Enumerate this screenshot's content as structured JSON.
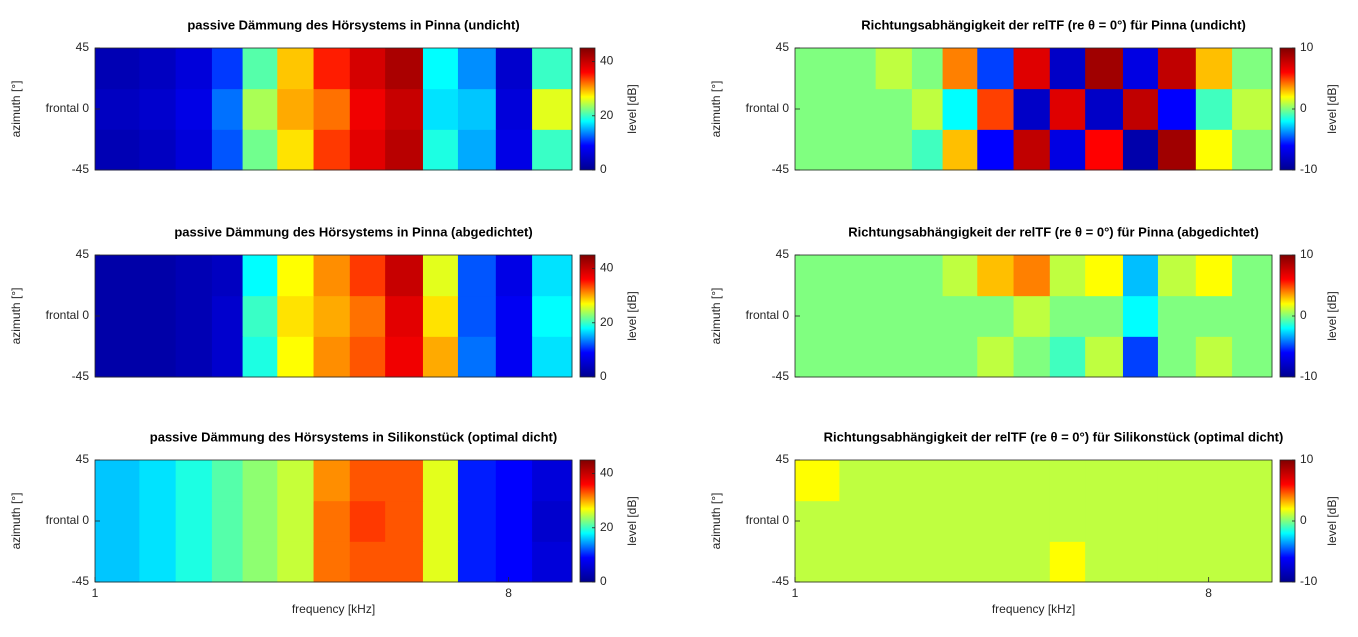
{
  "colormap": [
    "#00008f",
    "#0000ff",
    "#00ffff",
    "#ffff00",
    "#ff0000",
    "#800000"
  ],
  "chart_data": [
    {
      "type": "heatmap",
      "title": "passive Dämmung des Hörsystems in Pinna (undicht)",
      "ylabel": "azimuth [°]",
      "colorbar_label": "level [dB]",
      "log_x": true,
      "xlim": [
        1,
        11
      ],
      "ylim": [
        -45,
        45
      ],
      "yticks": [
        -45,
        {
          "value": 0,
          "label": "frontal 0"
        },
        45
      ],
      "clim": [
        0,
        45
      ],
      "cticks": [
        0,
        20,
        40
      ],
      "x_bins": [
        1,
        1.25,
        1.5,
        1.8,
        2.1,
        2.5,
        3,
        3.6,
        4.3,
        5.2,
        6.2,
        7.5,
        9,
        11
      ],
      "y_bins": [
        -45,
        -15,
        15,
        45
      ],
      "z": [
        [
          3,
          4,
          6,
          12,
          22,
          28,
          34,
          38,
          41,
          19,
          15,
          7,
          20
        ],
        [
          4,
          5,
          7,
          13,
          24,
          30,
          32,
          37,
          40,
          17,
          16,
          6,
          26
        ],
        [
          3,
          4,
          6,
          11,
          21,
          29,
          35,
          39,
          42,
          18,
          14,
          5,
          20
        ]
      ]
    },
    {
      "type": "heatmap",
      "title": "Richtungsabhängigkeit der relTF (re θ = 0°) für Pinna (undicht)",
      "ylabel": "azimuth [°]",
      "colorbar_label": "level [dB]",
      "log_x": true,
      "xlim": [
        1,
        11
      ],
      "ylim": [
        -45,
        45
      ],
      "yticks": [
        -45,
        {
          "value": 0,
          "label": "frontal 0"
        },
        45
      ],
      "clim": [
        -10,
        10
      ],
      "cticks": [
        -10,
        0,
        10
      ],
      "x_bins": [
        1,
        1.25,
        1.5,
        1.8,
        2.1,
        2.5,
        3,
        3.6,
        4.3,
        5.2,
        6.2,
        7.5,
        9,
        11
      ],
      "y_bins": [
        -45,
        -15,
        15,
        45
      ],
      "z": [
        [
          0,
          0,
          0,
          -1,
          3,
          -6,
          8,
          -7,
          6,
          -9,
          9,
          2,
          0
        ],
        [
          0,
          0,
          0,
          1,
          -2,
          5,
          -8,
          7,
          -8,
          8,
          -6,
          -1,
          1
        ],
        [
          0,
          0,
          1,
          0,
          4,
          -5,
          7,
          -8,
          9,
          -7,
          8,
          3,
          0
        ]
      ]
    },
    {
      "type": "heatmap",
      "title": "passive Dämmung des Hörsystems in Pinna (abgedichtet)",
      "ylabel": "azimuth [°]",
      "colorbar_label": "level [dB]",
      "log_x": true,
      "xlim": [
        1,
        11
      ],
      "ylim": [
        -45,
        45
      ],
      "yticks": [
        -45,
        {
          "value": 0,
          "label": "frontal 0"
        },
        45
      ],
      "clim": [
        0,
        45
      ],
      "cticks": [
        0,
        20,
        40
      ],
      "x_bins": [
        1,
        1.25,
        1.5,
        1.8,
        2.1,
        2.5,
        3,
        3.6,
        4.3,
        5.2,
        6.2,
        7.5,
        9,
        11
      ],
      "y_bins": [
        -45,
        -15,
        15,
        45
      ],
      "z": [
        [
          2,
          2,
          3,
          5,
          19,
          27,
          31,
          33,
          37,
          30,
          13,
          8,
          17
        ],
        [
          2,
          2,
          3,
          5,
          20,
          28,
          30,
          32,
          38,
          28,
          12,
          8,
          18
        ],
        [
          2,
          2,
          3,
          4,
          18,
          27,
          31,
          34,
          40,
          26,
          12,
          7,
          17
        ]
      ]
    },
    {
      "type": "heatmap",
      "title": "Richtungsabhängigkeit der relTF (re θ = 0°) für Pinna (abgedichtet)",
      "ylabel": "azimuth [°]",
      "colorbar_label": "level [dB]",
      "log_x": true,
      "xlim": [
        1,
        11
      ],
      "ylim": [
        -45,
        45
      ],
      "yticks": [
        -45,
        {
          "value": 0,
          "label": "frontal 0"
        },
        45
      ],
      "clim": [
        -10,
        10
      ],
      "cticks": [
        -10,
        0,
        10
      ],
      "x_bins": [
        1,
        1.25,
        1.5,
        1.8,
        2.1,
        2.5,
        3,
        3.6,
        4.3,
        5.2,
        6.2,
        7.5,
        9,
        11
      ],
      "y_bins": [
        -45,
        -15,
        15,
        45
      ],
      "z": [
        [
          0,
          0,
          0,
          0,
          0,
          1,
          0,
          -1,
          1,
          -5,
          0,
          1,
          0
        ],
        [
          0,
          0,
          0,
          0,
          0,
          0,
          1,
          0,
          0,
          -2,
          0,
          0,
          0
        ],
        [
          0,
          0,
          0,
          0,
          1,
          3,
          4,
          1,
          2,
          -3,
          1,
          2,
          0
        ]
      ]
    },
    {
      "type": "heatmap",
      "title": "passive Dämmung des Hörsystems in Silikonstück (optimal dicht)",
      "xlabel": "frequency [kHz]",
      "ylabel": "azimuth [°]",
      "colorbar_label": "level [dB]",
      "log_x": true,
      "xlim": [
        1,
        11
      ],
      "ylim": [
        -45,
        45
      ],
      "xticks": [
        1,
        8
      ],
      "yticks": [
        -45,
        {
          "value": 0,
          "label": "frontal 0"
        },
        45
      ],
      "clim": [
        0,
        45
      ],
      "cticks": [
        0,
        20,
        40
      ],
      "x_bins": [
        1,
        1.25,
        1.5,
        1.8,
        2.1,
        2.5,
        3,
        3.6,
        4.3,
        5.2,
        6.2,
        7.5,
        9,
        11
      ],
      "y_bins": [
        -45,
        -15,
        15,
        45
      ],
      "z": [
        [
          16,
          17,
          19,
          21,
          23,
          25,
          32,
          33,
          33,
          26,
          10,
          9,
          6
        ],
        [
          16,
          17,
          19,
          21,
          23,
          25,
          32,
          34,
          33,
          26,
          10,
          9,
          5
        ],
        [
          16,
          17,
          19,
          21,
          23,
          25,
          31,
          33,
          33,
          26,
          10,
          9,
          6
        ]
      ]
    },
    {
      "type": "heatmap",
      "title": "Richtungsabhängigkeit der relTF (re θ = 0°) für Silikonstück (optimal dicht)",
      "xlabel": "frequency [kHz]",
      "ylabel": "azimuth [°]",
      "colorbar_label": "level [dB]",
      "log_x": true,
      "xlim": [
        1,
        11
      ],
      "ylim": [
        -45,
        45
      ],
      "xticks": [
        1,
        8
      ],
      "yticks": [
        -45,
        {
          "value": 0,
          "label": "frontal 0"
        },
        45
      ],
      "clim": [
        -10,
        10
      ],
      "cticks": [
        -10,
        0,
        10
      ],
      "x_bins": [
        1,
        1.25,
        1.5,
        1.8,
        2.1,
        2.5,
        3,
        3.6,
        4.3,
        5.2,
        6.2,
        7.5,
        9,
        11
      ],
      "y_bins": [
        -45,
        -15,
        15,
        45
      ],
      "z": [
        [
          1,
          1,
          1,
          1,
          1,
          1,
          1,
          2,
          1,
          1,
          1,
          1,
          1
        ],
        [
          1,
          1,
          1,
          1,
          1,
          1,
          1,
          1,
          1,
          1,
          1,
          1,
          1
        ],
        [
          2,
          1,
          1,
          1,
          1,
          1,
          1,
          1,
          1,
          1,
          1,
          1,
          1
        ]
      ]
    }
  ]
}
